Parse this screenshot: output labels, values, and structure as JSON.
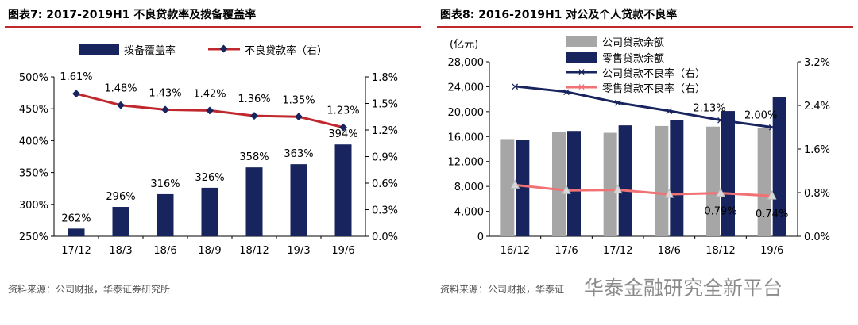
{
  "footer": {
    "source_left": "资料来源：公司财报，华泰证券研究所",
    "source_right": "资料来源：公司财报，华泰证",
    "watermark": "华泰金融研究全新平台"
  },
  "chart_data": [
    {
      "type": "bar",
      "title": "图表7:  2017-2019H1 不良贷款率及拨备覆盖率",
      "categories": [
        "17/12",
        "18/3",
        "18/6",
        "18/9",
        "18/12",
        "19/3",
        "19/6"
      ],
      "series": [
        {
          "name": "拨备覆盖率",
          "type": "bar",
          "axis": "left",
          "color": "#17245e",
          "values": [
            262,
            296,
            316,
            326,
            358,
            363,
            394
          ],
          "labels": [
            "262%",
            "296%",
            "316%",
            "326%",
            "358%",
            "363%",
            "394%"
          ]
        },
        {
          "name": "不良贷款率（右）",
          "type": "line",
          "axis": "right",
          "color": "#c0282d",
          "values": [
            1.61,
            1.48,
            1.43,
            1.42,
            1.36,
            1.35,
            1.23
          ],
          "labels": [
            "1.61%",
            "1.48%",
            "1.43%",
            "1.42%",
            "1.36%",
            "1.35%",
            "1.23%"
          ]
        }
      ],
      "y_left": {
        "min": 250,
        "max": 500,
        "ticks": [
          "250%",
          "300%",
          "350%",
          "400%",
          "450%",
          "500%"
        ]
      },
      "y_right": {
        "min": 0,
        "max": 1.8,
        "ticks": [
          "0.0%",
          "0.3%",
          "0.6%",
          "0.9%",
          "1.2%",
          "1.5%",
          "1.8%"
        ]
      },
      "legend": "top"
    },
    {
      "type": "bar",
      "title": "图表8:  2016-2019H1 对公及个人贷款不良率",
      "unit_label": "(亿元)",
      "categories": [
        "16/12",
        "17/6",
        "17/12",
        "18/6",
        "18/12",
        "19/6"
      ],
      "series": [
        {
          "name": "公司贷款余额",
          "type": "bar",
          "axis": "left",
          "color": "#a6a6a6",
          "values": [
            15600,
            16700,
            16600,
            17700,
            17600,
            17400
          ]
        },
        {
          "name": "零售贷款余额",
          "type": "bar",
          "axis": "left",
          "color": "#17245e",
          "values": [
            15400,
            16900,
            17800,
            18700,
            20100,
            22400
          ]
        },
        {
          "name": "公司贷款不良率（右）",
          "type": "line",
          "axis": "right",
          "color": "#17245e",
          "marker": "x",
          "values": [
            2.75,
            2.65,
            2.45,
            2.3,
            2.13,
            2.0
          ],
          "labels": [
            "",
            "",
            "",
            "",
            "2.13%",
            "2.00%"
          ]
        },
        {
          "name": "零售贷款不良率（右）",
          "type": "line",
          "axis": "right",
          "color": "#f07274",
          "marker": "triangle",
          "values": [
            0.94,
            0.84,
            0.85,
            0.77,
            0.79,
            0.74
          ],
          "labels": [
            "",
            "",
            "",
            "",
            "0.79%",
            "0.74%"
          ]
        }
      ],
      "y_left": {
        "min": 0,
        "max": 28000,
        "ticks": [
          "0",
          "4,000",
          "8,000",
          "12,000",
          "16,000",
          "20,000",
          "24,000",
          "28,000"
        ]
      },
      "y_right": {
        "min": 0,
        "max": 3.2,
        "ticks": [
          "0.0%",
          "0.8%",
          "1.6%",
          "2.4%",
          "3.2%"
        ]
      },
      "legend": "top-left"
    }
  ]
}
